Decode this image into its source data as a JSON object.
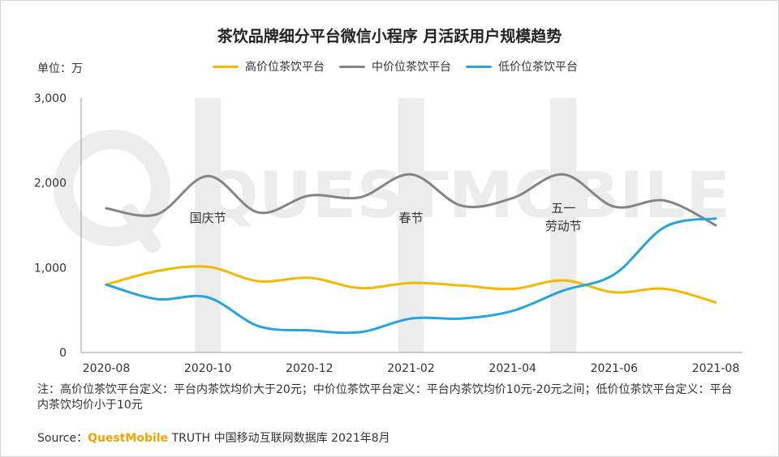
{
  "title": "茶饮品牌细分平台微信小程序 月活跃用户规模趋势",
  "unit_label": "单位：万",
  "colors": {
    "high": "#F6B800",
    "mid": "#848484",
    "low": "#25A5DC",
    "band": "#ececec",
    "axis": "#999999"
  },
  "chart_data": {
    "type": "line",
    "title": "茶饮品牌细分平台微信小程序 月活跃用户规模趋势",
    "ylabel": "单位：万",
    "ylim": [
      0,
      3000
    ],
    "y_ticks": [
      0,
      1000,
      2000,
      3000
    ],
    "y_tick_labels": [
      "0",
      "1,000",
      "2,000",
      "3,000"
    ],
    "x": [
      "2020-08",
      "2020-09",
      "2020-10",
      "2020-11",
      "2020-12",
      "2021-01",
      "2021-02",
      "2021-03",
      "2021-04",
      "2021-05",
      "2021-06",
      "2021-07",
      "2021-08"
    ],
    "x_tick_labels": [
      "2020-08",
      "2020-10",
      "2020-12",
      "2021-02",
      "2021-04",
      "2021-06",
      "2021-08"
    ],
    "legend_position": "top",
    "series": [
      {
        "name": "高价位茶饮平台",
        "color": "#F6B800",
        "values": [
          800,
          960,
          1010,
          840,
          880,
          760,
          820,
          790,
          750,
          850,
          710,
          750,
          590
        ]
      },
      {
        "name": "中价位茶饮平台",
        "color": "#848484",
        "values": [
          1700,
          1630,
          2080,
          1650,
          1850,
          1830,
          2100,
          1730,
          1820,
          2100,
          1720,
          1790,
          1500
        ]
      },
      {
        "name": "低价位茶饮平台",
        "color": "#25A5DC",
        "values": [
          800,
          630,
          650,
          310,
          260,
          240,
          400,
          400,
          490,
          730,
          920,
          1480,
          1580
        ]
      }
    ],
    "highlight_bands": [
      {
        "x": "2020-10",
        "label": [
          "国庆节"
        ]
      },
      {
        "x": "2021-02",
        "label": [
          "春节"
        ]
      },
      {
        "x": "2021-05",
        "label": [
          "五一",
          "劳动节"
        ]
      }
    ]
  },
  "note": "注：高价位茶饮平台定义：平台内茶饮均价大于20元；中价位茶饮平台定义：平台内茶饮均价10元-20元之间；低价位茶饮平台定义：平台内茶饮均价小于10元",
  "source": {
    "prefix": "Source：",
    "brand": "QuestMobile",
    "rest": " TRUTH 中国移动互联网数据库 2021年8月"
  },
  "watermark": {
    "text": "QUESTMOBILE"
  }
}
